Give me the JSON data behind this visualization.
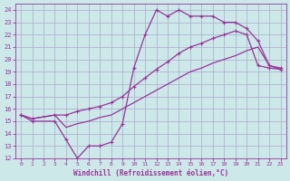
{
  "xlabel": "Windchill (Refroidissement éolien,°C)",
  "bg_color": "#cce8e8",
  "grid_color": "#aaaacc",
  "line_color": "#993399",
  "xlim": [
    -0.5,
    23.5
  ],
  "ylim": [
    12,
    24.5
  ],
  "xticks": [
    0,
    1,
    2,
    3,
    4,
    5,
    6,
    7,
    8,
    9,
    10,
    11,
    12,
    13,
    14,
    15,
    16,
    17,
    18,
    19,
    20,
    21,
    22,
    23
  ],
  "yticks": [
    12,
    13,
    14,
    15,
    16,
    17,
    18,
    19,
    20,
    21,
    22,
    23,
    24
  ],
  "curve1_x": [
    0,
    1,
    3,
    4,
    5,
    6,
    7,
    8,
    9,
    10,
    11,
    12,
    13,
    14,
    15,
    16,
    17,
    18,
    19,
    20,
    21,
    22,
    23
  ],
  "curve1_y": [
    15.5,
    15,
    15,
    13.5,
    12,
    13,
    13,
    13.3,
    14.8,
    19.3,
    22.0,
    24.0,
    23.5,
    24.0,
    23.5,
    23.5,
    23.5,
    23.0,
    23.0,
    22.5,
    21.5,
    19.5,
    19.3
  ],
  "curve2_x": [
    0,
    1,
    3,
    4,
    5,
    6,
    7,
    8,
    9,
    10,
    11,
    12,
    13,
    14,
    15,
    16,
    17,
    18,
    19,
    20,
    21,
    22,
    23
  ],
  "curve2_y": [
    15.5,
    15.2,
    15.5,
    15.5,
    15.8,
    16.0,
    16.2,
    16.5,
    17.0,
    17.8,
    18.5,
    19.2,
    19.8,
    20.5,
    21.0,
    21.3,
    21.7,
    22.0,
    22.3,
    22.0,
    19.5,
    19.3,
    19.2
  ],
  "curve3_x": [
    0,
    1,
    3,
    4,
    5,
    6,
    7,
    8,
    9,
    10,
    11,
    12,
    13,
    14,
    15,
    16,
    17,
    18,
    19,
    20,
    21,
    22,
    23
  ],
  "curve3_y": [
    15.5,
    15.2,
    15.5,
    14.5,
    14.8,
    15.0,
    15.3,
    15.5,
    16.0,
    16.5,
    17.0,
    17.5,
    18.0,
    18.5,
    19.0,
    19.3,
    19.7,
    20.0,
    20.3,
    20.7,
    21.0,
    19.5,
    19.2
  ]
}
